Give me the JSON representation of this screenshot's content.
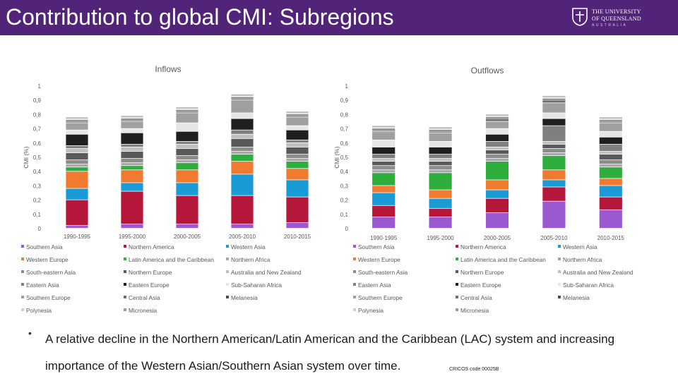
{
  "title": "Contribution to global CMI: Subregions",
  "logo": {
    "line1": "THE UNIVERSITY",
    "line2": "OF QUEENSLAND",
    "line3": "AUSTRALIA"
  },
  "bullet": "A relative decline in the Northern American/Latin American and the Caribbean (LAC) system and increasing importance of the Western Asian/Southern Asian system over time.",
  "cricos": "CRICOS code 00025B",
  "chart_data": [
    {
      "type": "bar",
      "stacked": true,
      "title": "Inflows",
      "ylabel": "CMI (%)",
      "ylim": [
        0,
        1
      ],
      "yticks": [
        "0",
        "0,1",
        "0,2",
        "0,3",
        "0,4",
        "0,5",
        "0,6",
        "0,7",
        "0,8",
        "0,9",
        "1"
      ],
      "categories": [
        "1990-1995",
        "1995-2000",
        "2000-2005",
        "2005-2010",
        "2010-2015"
      ],
      "series": [
        {
          "name": "Southern Asia",
          "color": "#9b59d0",
          "values": [
            0.02,
            0.03,
            0.03,
            0.03,
            0.04
          ]
        },
        {
          "name": "Northern America",
          "color": "#b5173a",
          "values": [
            0.18,
            0.23,
            0.2,
            0.2,
            0.18
          ]
        },
        {
          "name": "Western Asia",
          "color": "#1a9bd6",
          "values": [
            0.08,
            0.06,
            0.09,
            0.15,
            0.12
          ]
        },
        {
          "name": "Western Europe",
          "color": "#f07a30",
          "values": [
            0.12,
            0.09,
            0.09,
            0.09,
            0.08
          ]
        },
        {
          "name": "Latin America and the Caribbean",
          "color": "#2eae3c",
          "values": [
            0.03,
            0.03,
            0.05,
            0.05,
            0.05
          ]
        },
        {
          "name": "Northern Africa",
          "color": "#a6a6a6",
          "values": [
            0.02,
            0.02,
            0.02,
            0.02,
            0.02
          ]
        },
        {
          "name": "South-eastern Asia",
          "color": "#8c8c8c",
          "values": [
            0.03,
            0.03,
            0.03,
            0.03,
            0.03
          ]
        },
        {
          "name": "Northern Europe",
          "color": "#595959",
          "values": [
            0.05,
            0.05,
            0.05,
            0.06,
            0.05
          ]
        },
        {
          "name": "Australia and New Zealand",
          "color": "#bfbfbf",
          "values": [
            0.03,
            0.03,
            0.03,
            0.03,
            0.03
          ]
        },
        {
          "name": "Eastern Asia",
          "color": "#7f7f7f",
          "values": [
            0.02,
            0.02,
            0.02,
            0.03,
            0.02
          ]
        },
        {
          "name": "Eastern Europe",
          "color": "#1f1f1f",
          "values": [
            0.08,
            0.08,
            0.07,
            0.08,
            0.07
          ]
        },
        {
          "name": "Sub-Saharan Africa",
          "color": "#e6e6e6",
          "values": [
            0.03,
            0.03,
            0.06,
            0.04,
            0.03
          ]
        },
        {
          "name": "Southern Europe",
          "color": "#a0a0a0",
          "values": [
            0.05,
            0.05,
            0.07,
            0.09,
            0.06
          ]
        },
        {
          "name": "Central Asia",
          "color": "#6f6f6f",
          "values": [
            0.01,
            0.01,
            0.01,
            0.01,
            0.01
          ]
        },
        {
          "name": "Melanesia",
          "color": "#4d4d4d",
          "values": [
            0.01,
            0.01,
            0.01,
            0.01,
            0.01
          ]
        },
        {
          "name": "Polynesia",
          "color": "#d0d0d0",
          "values": [
            0.01,
            0.01,
            0.01,
            0.01,
            0.01
          ]
        },
        {
          "name": "Micronesia",
          "color": "#9a9a9a",
          "values": [
            0.01,
            0.01,
            0.01,
            0.01,
            0.01
          ]
        }
      ]
    },
    {
      "type": "bar",
      "stacked": true,
      "title": "Outflows",
      "ylabel": "CMI (%)",
      "ylim": [
        0,
        1
      ],
      "yticks": [
        "0",
        "0,1",
        "0,2",
        "0,3",
        "0,4",
        "0,5",
        "0,6",
        "0,7",
        "0,8",
        "0,9",
        "1"
      ],
      "categories": [
        "1990-1995",
        "1995-2000",
        "2000-2005",
        "2005-2010",
        "2010-2015"
      ],
      "series": [
        {
          "name": "Southern Asia",
          "color": "#9b59d0",
          "values": [
            0.08,
            0.08,
            0.11,
            0.19,
            0.13
          ]
        },
        {
          "name": "Northern America",
          "color": "#b5173a",
          "values": [
            0.08,
            0.06,
            0.1,
            0.1,
            0.09
          ]
        },
        {
          "name": "Western Asia",
          "color": "#1a9bd6",
          "values": [
            0.09,
            0.07,
            0.06,
            0.05,
            0.08
          ]
        },
        {
          "name": "Western Europe",
          "color": "#f07a30",
          "values": [
            0.05,
            0.06,
            0.07,
            0.07,
            0.05
          ]
        },
        {
          "name": "Latin America and the Caribbean",
          "color": "#2eae3c",
          "values": [
            0.09,
            0.12,
            0.13,
            0.1,
            0.08
          ]
        },
        {
          "name": "Northern Africa",
          "color": "#a6a6a6",
          "values": [
            0.02,
            0.02,
            0.02,
            0.02,
            0.02
          ]
        },
        {
          "name": "South-eastern Asia",
          "color": "#8c8c8c",
          "values": [
            0.03,
            0.03,
            0.03,
            0.03,
            0.03
          ]
        },
        {
          "name": "Northern Europe",
          "color": "#595959",
          "values": [
            0.03,
            0.03,
            0.03,
            0.03,
            0.04
          ]
        },
        {
          "name": "Australia and New Zealand",
          "color": "#bfbfbf",
          "values": [
            0.02,
            0.02,
            0.02,
            0.02,
            0.02
          ]
        },
        {
          "name": "Eastern Asia",
          "color": "#7f7f7f",
          "values": [
            0.03,
            0.03,
            0.04,
            0.11,
            0.05
          ]
        },
        {
          "name": "Eastern Europe",
          "color": "#1f1f1f",
          "values": [
            0.05,
            0.05,
            0.05,
            0.05,
            0.05
          ]
        },
        {
          "name": "Sub-Saharan Africa",
          "color": "#e6e6e6",
          "values": [
            0.05,
            0.04,
            0.04,
            0.04,
            0.04
          ]
        },
        {
          "name": "Southern Europe",
          "color": "#a0a0a0",
          "values": [
            0.06,
            0.06,
            0.05,
            0.07,
            0.06
          ]
        },
        {
          "name": "Central Asia",
          "color": "#6f6f6f",
          "values": [
            0.01,
            0.01,
            0.02,
            0.02,
            0.01
          ]
        },
        {
          "name": "Melanesia",
          "color": "#4d4d4d",
          "values": [
            0.01,
            0.01,
            0.01,
            0.01,
            0.01
          ]
        },
        {
          "name": "Polynesia",
          "color": "#d0d0d0",
          "values": [
            0.01,
            0.01,
            0.01,
            0.01,
            0.01
          ]
        },
        {
          "name": "Micronesia",
          "color": "#9a9a9a",
          "values": [
            0.01,
            0.01,
            0.01,
            0.01,
            0.01
          ]
        }
      ]
    }
  ]
}
